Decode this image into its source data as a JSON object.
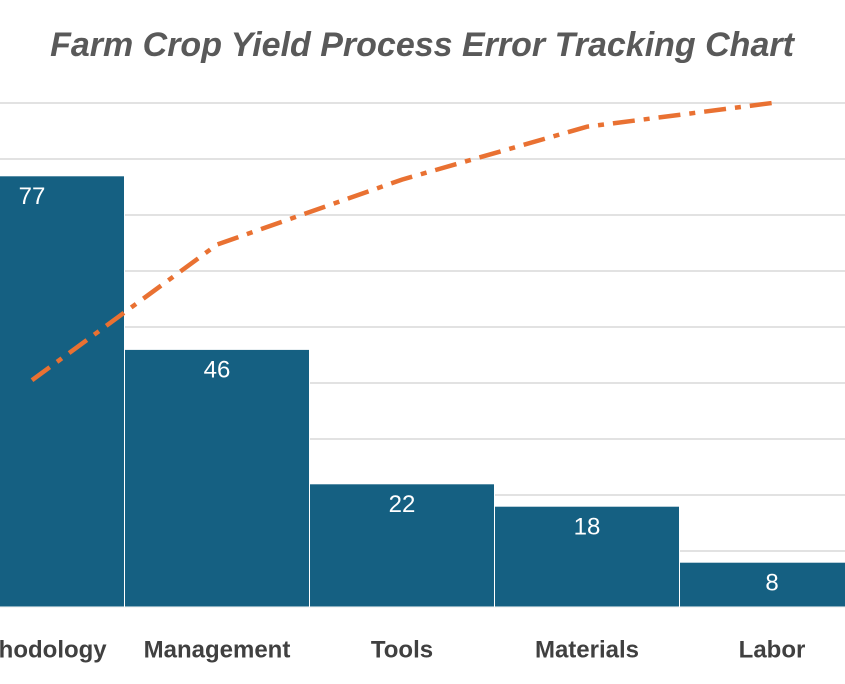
{
  "chart_data": {
    "type": "pareto",
    "title": "Farm Crop Yield Process Error Tracking Chart",
    "categories": [
      "Methodology",
      "Management",
      "Tools",
      "Materials",
      "Labor"
    ],
    "series": [
      {
        "type": "bar",
        "color": "#156082",
        "values": [
          77,
          46,
          22,
          18,
          8
        ]
      },
      {
        "type": "line",
        "color": "#E97132",
        "axis": "y2",
        "values": [
          45.0,
          71.9,
          84.8,
          95.3,
          100
        ]
      }
    ],
    "ylim": [
      0,
      90
    ],
    "yticks": [
      0,
      10,
      20,
      30,
      40,
      50,
      60,
      70,
      80,
      90
    ],
    "y2lim": [
      0,
      100
    ],
    "grid": true
  }
}
